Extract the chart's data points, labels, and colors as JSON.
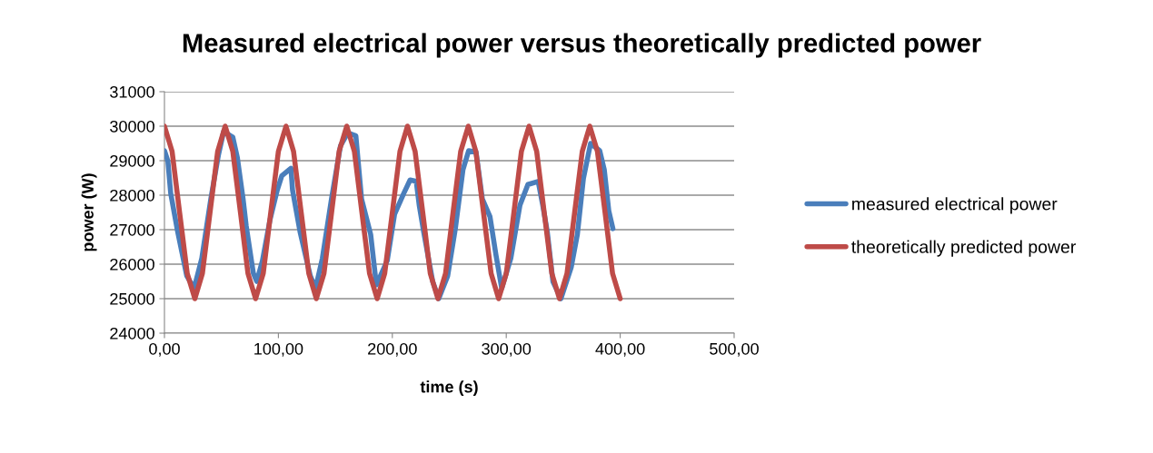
{
  "chart_data": {
    "type": "line",
    "title": "Measured electrical power versus theoretically predicted power",
    "xlabel": "time (s)",
    "ylabel": "power (W)",
    "xlim": [
      0,
      500
    ],
    "xticks": [
      {
        "value": 0,
        "label": "0,00"
      },
      {
        "value": 100,
        "label": "100,00"
      },
      {
        "value": 200,
        "label": "200,00"
      },
      {
        "value": 300,
        "label": "300,00"
      },
      {
        "value": 400,
        "label": "400,00"
      },
      {
        "value": 500,
        "label": "500,00"
      }
    ],
    "ylim": [
      24000,
      31000
    ],
    "yticks": [
      24000,
      25000,
      26000,
      27000,
      28000,
      29000,
      30000,
      31000
    ],
    "grid": "y",
    "legend": "right",
    "marker": "none",
    "line_style": "solid",
    "series": [
      {
        "name": "measured electrical power",
        "color": "#4a7ebb",
        "x": [
          0,
          3,
          5.5,
          11.6,
          19.6,
          26,
          32.8,
          40.7,
          47.4,
          52,
          60,
          64,
          69,
          71.7,
          78,
          81,
          86,
          92.6,
          99,
          103,
          111,
          112.4,
          119,
          128,
          132.6,
          138.6,
          146.6,
          154.5,
          161,
          168,
          173,
          181,
          186,
          195.5,
          202,
          210,
          215.6,
          221,
          223.6,
          227.5,
          235.5,
          240.7,
          248.6,
          255.3,
          262,
          267,
          273.5,
          279,
          285.7,
          291,
          296,
          304,
          312,
          319,
          328,
          332,
          336,
          341,
          348,
          357,
          362.4,
          367.7,
          374,
          382,
          386,
          390,
          393.6
        ],
        "values": [
          29290,
          28990,
          28050,
          26940,
          25660,
          25300,
          26170,
          27890,
          29170,
          29850,
          29680,
          29080,
          27890,
          27120,
          25740,
          25500,
          26100,
          27280,
          28150,
          28560,
          28780,
          28150,
          26940,
          25660,
          25300,
          26170,
          27890,
          29430,
          29810,
          29720,
          27890,
          26860,
          25400,
          26100,
          27450,
          28050,
          28440,
          28400,
          27710,
          26940,
          25490,
          25000,
          25660,
          27030,
          28740,
          29290,
          29250,
          27890,
          27380,
          26260,
          25300,
          26170,
          27710,
          28310,
          28400,
          27710,
          26940,
          25490,
          25000,
          25910,
          26860,
          28480,
          29500,
          29290,
          28740,
          27540,
          27030
        ]
      },
      {
        "name": "theoretically predicted power",
        "color": "#be4b48",
        "x": [
          0,
          6.7,
          13.3,
          20,
          26.7,
          33.3,
          40,
          46.7,
          53.3,
          60,
          66.7,
          73.3,
          80,
          86.7,
          93.3,
          100,
          106.7,
          113.3,
          120,
          126.7,
          133.3,
          140,
          146.7,
          153.3,
          160,
          166.7,
          173.3,
          180,
          186.7,
          193.3,
          200,
          206.7,
          213.3,
          220,
          226.7,
          233.3,
          240,
          246.7,
          253.3,
          260,
          266.7,
          273.3,
          280,
          286.7,
          293.3,
          300,
          306.7,
          313.3,
          320,
          326.7,
          333.3,
          340,
          346.7,
          353.3,
          360,
          366.7,
          373.3,
          380,
          386.7,
          393.3,
          400
        ],
        "values": [
          30000,
          29270,
          27500,
          25730,
          25000,
          25730,
          27500,
          29270,
          30000,
          29270,
          27500,
          25730,
          25000,
          25730,
          27500,
          29270,
          30000,
          29270,
          27500,
          25730,
          25000,
          25730,
          27500,
          29270,
          30000,
          29270,
          27500,
          25730,
          25000,
          25730,
          27500,
          29270,
          30000,
          29270,
          27500,
          25730,
          25000,
          25730,
          27500,
          29270,
          30000,
          29270,
          27500,
          25730,
          25000,
          25730,
          27500,
          29270,
          30000,
          29270,
          27500,
          25730,
          25000,
          25730,
          27500,
          29270,
          30000,
          29270,
          27500,
          25730,
          25000
        ]
      }
    ]
  }
}
